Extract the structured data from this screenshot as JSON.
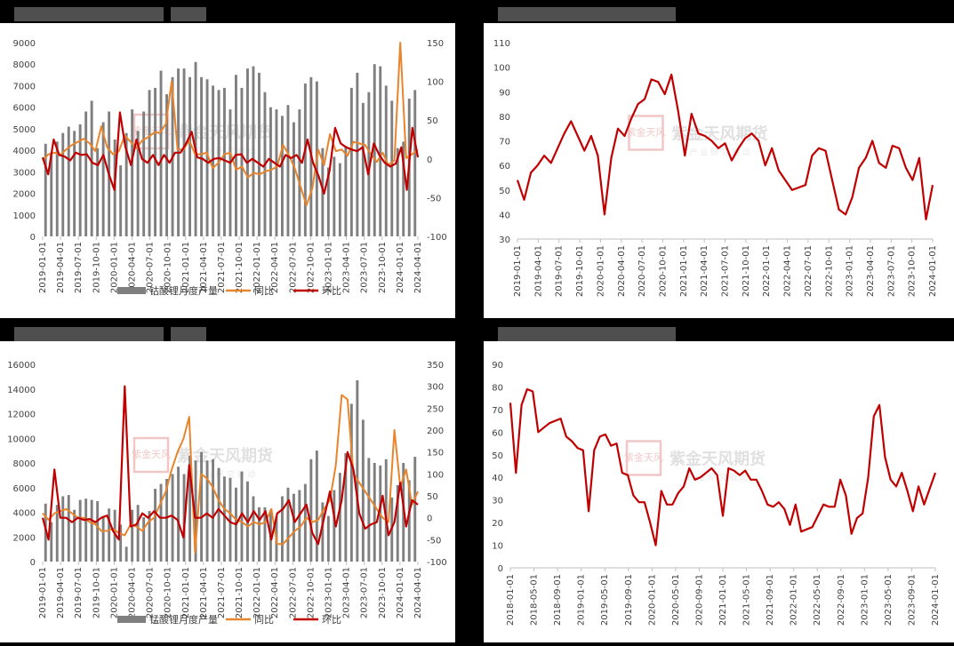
{
  "chart_data": [
    {
      "id": "tl",
      "type": "bar+line",
      "x_labels": [
        "2019-01-01",
        "2019-04-01",
        "2019-07-01",
        "2019-10-01",
        "2020-01-01",
        "2020-04-01",
        "2020-07-01",
        "2020-10-01",
        "2021-01-01",
        "2021-04-01",
        "2021-07-01",
        "2021-10-01",
        "2022-01-01",
        "2022-04-01",
        "2022-07-01",
        "2022-10-01",
        "2023-01-01",
        "2023-04-01",
        "2023-07-01",
        "2023-10-01",
        "2024-01-01",
        "2024-04-01"
      ],
      "y_left": {
        "min": 0,
        "max": 9000,
        "ticks": [
          "0",
          "1000",
          "2000",
          "3000",
          "4000",
          "5000",
          "6000",
          "7000",
          "8000",
          "9000"
        ]
      },
      "y_right": {
        "min": -100,
        "max": 150,
        "ticks": [
          "-100",
          "-50",
          "0",
          "50",
          "100",
          "150"
        ]
      },
      "series": [
        {
          "name": "钴酸锂月度产量",
          "kind": "bar",
          "axis": "left",
          "color": "#7f7f7f",
          "values": [
            4300,
            3900,
            4400,
            4800,
            5100,
            4900,
            5200,
            5800,
            6300,
            4100,
            5300,
            5800,
            4500,
            3300,
            4800,
            5900,
            4900,
            5800,
            6800,
            6900,
            7700,
            6600,
            7400,
            7800,
            7800,
            7400,
            8100,
            7400,
            7300,
            7000,
            6800,
            6900,
            5900,
            7500,
            6900,
            7800,
            7900,
            7600,
            6700,
            6000,
            5900,
            5600,
            6100,
            5300,
            5900,
            7100,
            7400,
            7200,
            4100,
            3200,
            3700,
            3400,
            4200,
            6900,
            7600,
            6200,
            6700,
            8000,
            7900,
            7000,
            6300,
            4100,
            4400,
            6400,
            6800
          ]
        },
        {
          "name": "同比",
          "kind": "line",
          "axis": "right",
          "color": "#e8842c",
          "values": [
            -2,
            6,
            8,
            5,
            12,
            18,
            22,
            26,
            20,
            10,
            42,
            15,
            6,
            10,
            30,
            22,
            14,
            24,
            28,
            34,
            34,
            45,
            100,
            12,
            12,
            24,
            6,
            6,
            8,
            -12,
            -5,
            6,
            8,
            -14,
            -10,
            -24,
            -18,
            -20,
            -16,
            -14,
            -10,
            18,
            5,
            -12,
            -36,
            -60,
            -38,
            12,
            -8,
            32,
            10,
            12,
            4,
            22,
            20,
            18,
            6,
            -4,
            8,
            -8,
            -2,
            150,
            1,
            6,
            12
          ]
        },
        {
          "name": "环比",
          "kind": "line",
          "axis": "right",
          "color": "#c00000",
          "values": [
            2,
            -20,
            25,
            5,
            3,
            -2,
            8,
            5,
            6,
            -5,
            -8,
            5,
            -20,
            -40,
            60,
            15,
            -8,
            25,
            0,
            -5,
            5,
            -8,
            5,
            -5,
            8,
            8,
            20,
            35,
            2,
            0,
            -5,
            0,
            1,
            -2,
            -5,
            5,
            6,
            -5,
            0,
            -5,
            -10,
            0,
            -5,
            -10,
            5,
            1,
            5,
            -5,
            25,
            -5,
            -22,
            -45,
            -15,
            40,
            20,
            15,
            12,
            10,
            15,
            -20,
            20,
            5,
            -5,
            -10,
            -6,
            15,
            -40,
            40,
            2
          ]
        }
      ]
    },
    {
      "id": "tr",
      "type": "line",
      "x_labels": [
        "2019-01-01",
        "2019-04-01",
        "2019-07-01",
        "2019-10-01",
        "2020-01-01",
        "2020-04-01",
        "2020-07-01",
        "2020-10-01",
        "2021-01-01",
        "2021-04-01",
        "2021-07-01",
        "2021-10-01",
        "2022-01-01",
        "2022-04-01",
        "2022-07-01",
        "2022-10-01",
        "2023-01-01",
        "2023-04-01",
        "2023-07-01",
        "2023-10-01",
        "2024-01-01"
      ],
      "y": {
        "min": 30,
        "max": 110,
        "ticks": [
          "30",
          "40",
          "50",
          "60",
          "70",
          "80",
          "90",
          "100",
          "110"
        ]
      },
      "series": [
        {
          "name": "",
          "color": "#c00000",
          "values": [
            54,
            46,
            57,
            60,
            64,
            61,
            67,
            73,
            78,
            72,
            66,
            72,
            64,
            40,
            63,
            75,
            72,
            79,
            85,
            87,
            95,
            94,
            89,
            97,
            82,
            64,
            81,
            73,
            72,
            70,
            67,
            69,
            62,
            67,
            71,
            73,
            70,
            60,
            67,
            58,
            54,
            50,
            51,
            52,
            64,
            67,
            66,
            54,
            42,
            40,
            47,
            59,
            63,
            70,
            61,
            59,
            68,
            67,
            59,
            54,
            63,
            38,
            52
          ]
        }
      ]
    },
    {
      "id": "bl",
      "type": "bar+line",
      "x_labels": [
        "2019-01-01",
        "2019-04-01",
        "2019-07-01",
        "2019-10-01",
        "2020-01-01",
        "2020-04-01",
        "2020-07-01",
        "2020-10-01",
        "2021-01-01",
        "2021-04-01",
        "2021-07-01",
        "2021-10-01",
        "2022-01-01",
        "2022-04-01",
        "2022-07-01",
        "2022-10-01",
        "2023-01-01",
        "2023-04-01",
        "2023-07-01",
        "2023-10-01",
        "2024-01-01",
        "2024-04-01"
      ],
      "y_left": {
        "min": 0,
        "max": 16000,
        "ticks": [
          "0",
          "2000",
          "4000",
          "6000",
          "8000",
          "10000",
          "12000",
          "14000",
          "16000"
        ]
      },
      "y_right": {
        "min": -100,
        "max": 350,
        "ticks": [
          "-100",
          "-50",
          "0",
          "50",
          "100",
          "150",
          "200",
          "250",
          "300",
          "350"
        ]
      },
      "series": [
        {
          "name": "锰酸锂月度产量",
          "kind": "bar",
          "axis": "left",
          "color": "#7f7f7f",
          "values": [
            4700,
            3200,
            4600,
            5300,
            5400,
            4200,
            5000,
            5100,
            5000,
            4900,
            3700,
            4300,
            4200,
            3000,
            1200,
            4200,
            4600,
            3600,
            4100,
            5900,
            6300,
            6700,
            7100,
            7700,
            7100,
            8600,
            8200,
            8900,
            8200,
            8300,
            7600,
            6900,
            6800,
            6000,
            7300,
            6500,
            5300,
            4400,
            4400,
            4200,
            3700,
            5300,
            6000,
            5500,
            5800,
            6300,
            8300,
            9000,
            4800,
            3700,
            5800,
            7200,
            8800,
            12800,
            14700,
            11500,
            8400,
            8000,
            7800,
            8300,
            5200,
            6200,
            8000,
            6600,
            8500
          ]
        },
        {
          "name": "同比",
          "kind": "line",
          "axis": "right",
          "color": "#e8842c",
          "values": [
            10,
            -5,
            10,
            15,
            20,
            10,
            0,
            0,
            -10,
            -15,
            -30,
            -30,
            -25,
            -35,
            -40,
            -15,
            -20,
            -30,
            -10,
            0,
            30,
            60,
            110,
            150,
            180,
            230,
            -80,
            100,
            90,
            70,
            40,
            20,
            10,
            -5,
            -10,
            -20,
            -10,
            -15,
            -10,
            20,
            -60,
            -60,
            -45,
            -30,
            -20,
            0,
            -10,
            -5,
            20,
            40,
            120,
            280,
            270,
            100,
            80,
            60,
            40,
            20,
            0,
            -10,
            200,
            70,
            110,
            30,
            60
          ]
        },
        {
          "name": "环比",
          "kind": "line",
          "axis": "right",
          "color": "#c00000",
          "values": [
            0,
            -50,
            110,
            0,
            0,
            -10,
            0,
            -5,
            -3,
            -10,
            0,
            5,
            -30,
            -50,
            300,
            -20,
            -15,
            10,
            0,
            15,
            0,
            0,
            5,
            -5,
            -45,
            120,
            0,
            0,
            10,
            0,
            20,
            5,
            -10,
            -15,
            10,
            -10,
            15,
            -5,
            15,
            -50,
            10,
            20,
            40,
            -10,
            10,
            30,
            -35,
            -60,
            0,
            60,
            -20,
            40,
            150,
            110,
            10,
            -25,
            -15,
            -10,
            50,
            -40,
            -10,
            80,
            -20,
            40,
            30
          ]
        }
      ]
    },
    {
      "id": "br",
      "type": "line",
      "x_labels": [
        "2018-01-01",
        "2018-05-01",
        "2018-09-01",
        "2019-01-01",
        "2019-05-01",
        "2019-09-01",
        "2020-01-01",
        "2020-05-01",
        "2020-09-01",
        "2021-01-01",
        "2021-05-01",
        "2021-09-01",
        "2022-01-01",
        "2022-05-01",
        "2022-09-01",
        "2023-01-01",
        "2023-05-01",
        "2023-09-01",
        "2024-01-01"
      ],
      "y": {
        "min": 0,
        "max": 90,
        "ticks": [
          "0",
          "10",
          "20",
          "30",
          "40",
          "50",
          "60",
          "70",
          "80",
          "90"
        ]
      },
      "series": [
        {
          "name": "",
          "color": "#c00000",
          "values": [
            73,
            42,
            72,
            79,
            78,
            60,
            62,
            64,
            65,
            66,
            58,
            56,
            53,
            52,
            25,
            52,
            58,
            59,
            54,
            55,
            42,
            41,
            32,
            29,
            29,
            20,
            10,
            34,
            28,
            28,
            33,
            36,
            44,
            39,
            40,
            42,
            44,
            41,
            23,
            44,
            43,
            41,
            43,
            39,
            39,
            34,
            28,
            27,
            29,
            26,
            19,
            28,
            16,
            17,
            18,
            23,
            28,
            27,
            27,
            39,
            32,
            15,
            22,
            24,
            40,
            67,
            72,
            49,
            39,
            36,
            42,
            34,
            25,
            36,
            28,
            35,
            42
          ]
        }
      ]
    }
  ],
  "watermark": {
    "brand": "紫金天风期货",
    "seal": "紫金天风",
    "tagline": "产 业   研 究   驱 动"
  }
}
